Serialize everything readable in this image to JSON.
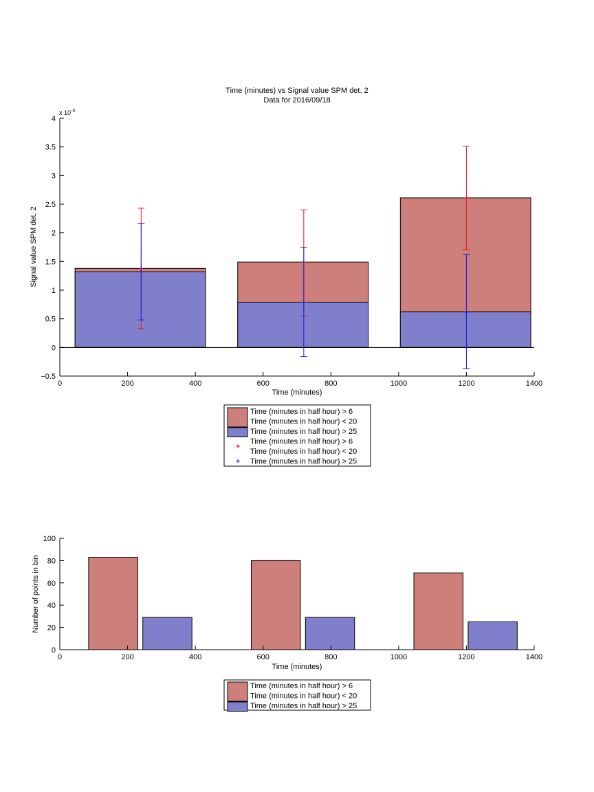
{
  "chart_data": [
    {
      "type": "bar",
      "title": "Time (minutes) vs Signal value SPM det. 2",
      "subtitle": "Data for 2016/09/18",
      "xlabel": "Time (minutes)",
      "ylabel": "Signal value SPM det. 2",
      "y_multiplier": "x 10",
      "y_multiplier_exp": "-4",
      "xlim": [
        0,
        1400
      ],
      "ylim": [
        -0.5,
        4
      ],
      "x_ticks": [
        0,
        200,
        400,
        600,
        800,
        1000,
        1200,
        1400
      ],
      "y_ticks": [
        -0.5,
        0,
        0.5,
        1,
        1.5,
        2,
        2.5,
        3,
        3.5,
        4
      ],
      "y_tick_labels": [
        "−0.5",
        "0",
        "0.5",
        "1",
        "1.5",
        "2",
        "2.5",
        "3",
        "3.5",
        "4"
      ],
      "bar_groups": [
        {
          "x_start": 45,
          "x_end": 430,
          "red": 1.38,
          "blue": 1.32
        },
        {
          "x_start": 525,
          "x_end": 910,
          "red": 1.49,
          "blue": 0.79
        },
        {
          "x_start": 1005,
          "x_end": 1390,
          "red": 2.61,
          "blue": 0.62
        }
      ],
      "error_bars": [
        {
          "x": 240,
          "series": "red",
          "low": 0.33,
          "center": 1.38,
          "high": 2.43
        },
        {
          "x": 240,
          "series": "blue",
          "low": 0.48,
          "center": 1.32,
          "high": 2.16
        },
        {
          "x": 720,
          "series": "red",
          "low": 0.56,
          "center": 1.49,
          "high": 2.4
        },
        {
          "x": 720,
          "series": "blue",
          "low": -0.16,
          "center": 0.79,
          "high": 1.75
        },
        {
          "x": 1200,
          "series": "red",
          "low": 1.71,
          "center": 2.61,
          "high": 3.51
        },
        {
          "x": 1200,
          "series": "blue",
          "low": -0.37,
          "center": 0.62,
          "high": 1.62
        }
      ],
      "colors": {
        "red": "#cc7f7b",
        "blue": "#807fcc",
        "red_err": "#e8141a",
        "blue_err": "#1414e8"
      },
      "legend": {
        "placement": "below",
        "entries": [
          {
            "kind": "patch",
            "color": "red",
            "lines": [
              "Time (minutes in half hour) > 6",
              "Time (minutes in half hour) < 20"
            ]
          },
          {
            "kind": "patch",
            "color": "blue",
            "lines": [
              "Time (minutes in half hour) > 25"
            ]
          },
          {
            "kind": "marker",
            "color": "red_err",
            "lines": [
              "Time (minutes in half hour) > 6",
              "Time (minutes in half hour) < 20"
            ]
          },
          {
            "kind": "marker",
            "color": "blue_err",
            "lines": [
              "Time (minutes in half hour) > 25"
            ]
          }
        ]
      }
    },
    {
      "type": "bar",
      "xlabel": "Time (minutes)",
      "ylabel": "Number of points in bin",
      "xlim": [
        0,
        1400
      ],
      "ylim": [
        0,
        100
      ],
      "x_ticks": [
        0,
        200,
        400,
        600,
        800,
        1000,
        1200,
        1400
      ],
      "y_ticks": [
        0,
        20,
        40,
        60,
        80,
        100
      ],
      "bars": [
        {
          "series": "red",
          "x_start": 85,
          "x_end": 230,
          "value": 83
        },
        {
          "series": "blue",
          "x_start": 245,
          "x_end": 390,
          "value": 29
        },
        {
          "series": "red",
          "x_start": 565,
          "x_end": 710,
          "value": 80
        },
        {
          "series": "blue",
          "x_start": 725,
          "x_end": 870,
          "value": 29
        },
        {
          "series": "red",
          "x_start": 1045,
          "x_end": 1190,
          "value": 69
        },
        {
          "series": "blue",
          "x_start": 1205,
          "x_end": 1350,
          "value": 25
        }
      ],
      "legend": {
        "placement": "below",
        "entries": [
          {
            "kind": "patch",
            "color": "red",
            "lines": [
              "Time (minutes in half hour) > 6",
              "Time (minutes in half hour) < 20"
            ]
          },
          {
            "kind": "patch",
            "color": "blue",
            "lines": [
              "Time (minutes in half hour) > 25"
            ]
          }
        ]
      }
    }
  ]
}
